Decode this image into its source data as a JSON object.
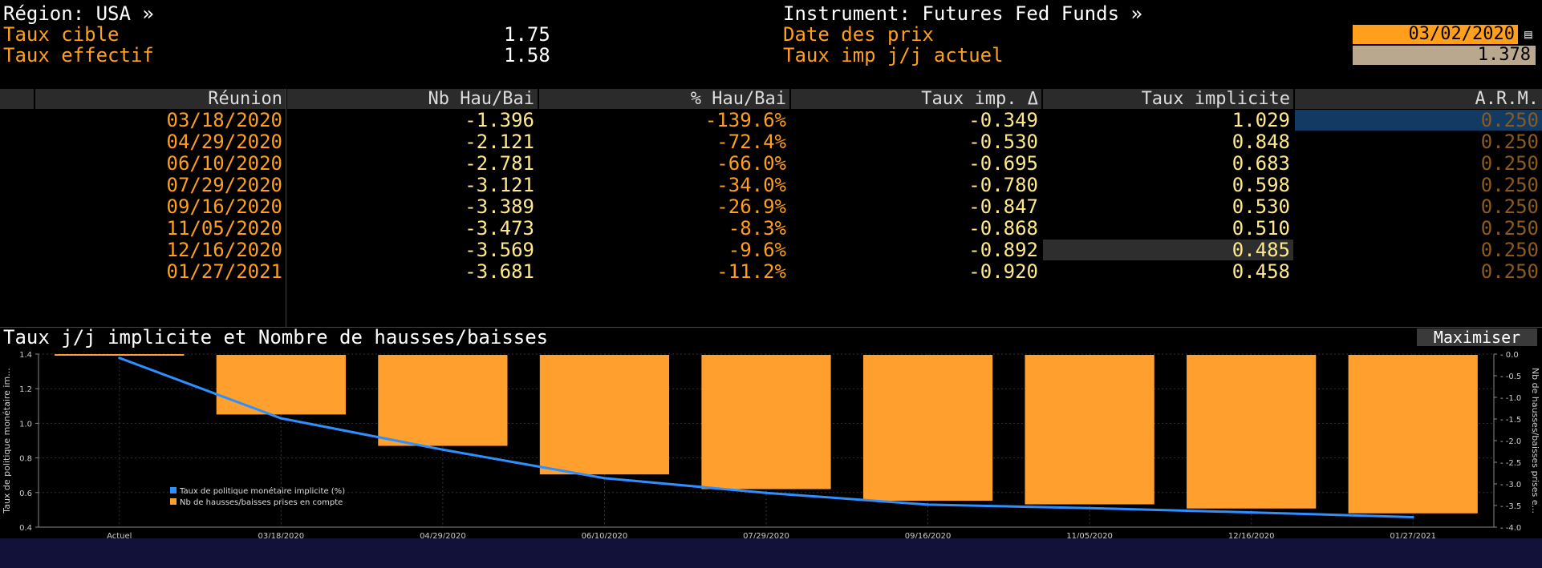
{
  "header": {
    "region_label": "Région: USA »",
    "target_rate_label": "Taux cible",
    "target_rate_value": "1.75",
    "effective_rate_label": "Taux effectif",
    "effective_rate_value": "1.58",
    "instrument_label": "Instrument: Futures Fed Funds »",
    "price_date_label": "Date des prix",
    "price_date_value": "03/02/2020",
    "implied_rate_label": "Taux imp j/j actuel",
    "implied_rate_value": "1.378"
  },
  "table": {
    "headers": [
      "Réunion",
      "Nb Hau/Bai",
      "% Hau/Bai",
      "Taux imp. Δ",
      "Taux implicite",
      "A.R.M."
    ],
    "rows": [
      {
        "date": "03/18/2020",
        "nb": "-1.396",
        "pct": "-139.6%",
        "delta": "-0.349",
        "implied": "1.029",
        "arm": "0.250"
      },
      {
        "date": "04/29/2020",
        "nb": "-2.121",
        "pct": "-72.4%",
        "delta": "-0.530",
        "implied": "0.848",
        "arm": "0.250"
      },
      {
        "date": "06/10/2020",
        "nb": "-2.781",
        "pct": "-66.0%",
        "delta": "-0.695",
        "implied": "0.683",
        "arm": "0.250"
      },
      {
        "date": "07/29/2020",
        "nb": "-3.121",
        "pct": "-34.0%",
        "delta": "-0.780",
        "implied": "0.598",
        "arm": "0.250"
      },
      {
        "date": "09/16/2020",
        "nb": "-3.389",
        "pct": "-26.9%",
        "delta": "-0.847",
        "implied": "0.530",
        "arm": "0.250"
      },
      {
        "date": "11/05/2020",
        "nb": "-3.473",
        "pct": "-8.3%",
        "delta": "-0.868",
        "implied": "0.510",
        "arm": "0.250"
      },
      {
        "date": "12/16/2020",
        "nb": "-3.569",
        "pct": "-9.6%",
        "delta": "-0.892",
        "implied": "0.485",
        "arm": "0.250"
      },
      {
        "date": "01/27/2021",
        "nb": "-3.681",
        "pct": "-11.2%",
        "delta": "-0.920",
        "implied": "0.458",
        "arm": "0.250"
      }
    ]
  },
  "chart_panel": {
    "title": "Taux j/j implicite et Nombre de hausses/baisses",
    "maximize_label": "Maximiser"
  },
  "chart_data": {
    "type": "bar",
    "categories": [
      "Actuel",
      "03/18/2020",
      "04/29/2020",
      "06/10/2020",
      "07/29/2020",
      "09/16/2020",
      "11/05/2020",
      "12/16/2020",
      "01/27/2021"
    ],
    "ylabel_left": "Taux de politique monétaire im...",
    "ylabel_right": "Nb de hausses/baisses prises e...",
    "ylim_left": [
      0.4,
      1.4
    ],
    "ylim_right": [
      -4.0,
      0.0
    ],
    "yticks_left": [
      "1.4",
      "1.2",
      "1.0",
      "0.8",
      "0.6",
      "0.4"
    ],
    "yticks_right": [
      "0.0",
      "-0.5",
      "-1.0",
      "-1.5",
      "-2.0",
      "-2.5",
      "-3.0",
      "-3.5",
      "-4.0"
    ],
    "legend_position": "bottom-left",
    "series": [
      {
        "name": "Taux de politique monétaire implicite (%)",
        "kind": "line",
        "axis": "left",
        "color": "#2f8fff",
        "values": [
          1.378,
          1.029,
          0.848,
          0.683,
          0.598,
          0.53,
          0.51,
          0.485,
          0.458
        ]
      },
      {
        "name": "Nb de hausses/baisses prises en compte",
        "kind": "bar",
        "axis": "right",
        "color": "#ff9f2e",
        "values": [
          0.0,
          -1.396,
          -2.121,
          -2.781,
          -3.121,
          -3.389,
          -3.473,
          -3.569,
          -3.681
        ]
      }
    ]
  }
}
